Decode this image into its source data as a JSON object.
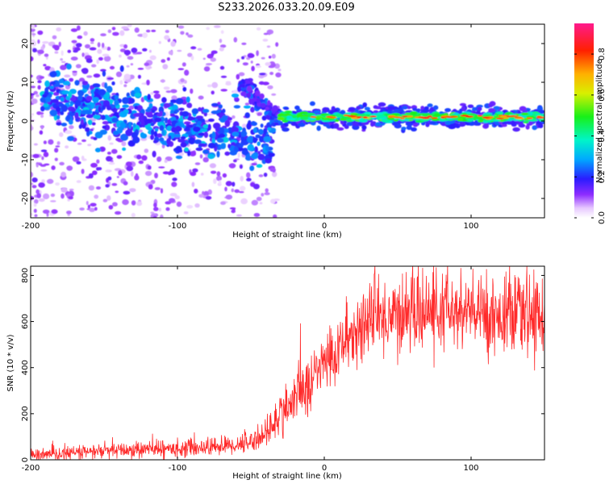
{
  "title": "S233.2026.033.20.09.E09",
  "chart_data": [
    {
      "type": "heatmap",
      "name": "spectrogram",
      "xlabel": "Height of straight line (km)",
      "ylabel": "Frequency (Hz)",
      "xlim": [
        -200,
        150
      ],
      "ylim": [
        -25,
        25
      ],
      "xticks": [
        -200,
        -100,
        0,
        100
      ],
      "xtick_labels": [
        "-200",
        "-100",
        "0",
        "100"
      ],
      "yticks": [
        -20,
        -10,
        0,
        10,
        20
      ],
      "ytick_labels": [
        "-20",
        "-10",
        "0",
        "10",
        "20"
      ],
      "colorbar": {
        "label": "Normalized spectral amplitude",
        "range": [
          0.0,
          0.95
        ],
        "ticks": [
          0.0,
          0.2,
          0.4,
          0.6,
          0.8
        ],
        "tick_labels": [
          "0.0",
          "0.2",
          "0.4",
          "0.6",
          "0.8"
        ]
      },
      "features": [
        {
          "kind": "scatter-noise",
          "x_range": [
            -200,
            -40
          ],
          "freq_range": [
            -25,
            25
          ],
          "amplitude": 0.05
        },
        {
          "kind": "diagonal-band",
          "from": [
            -190,
            6
          ],
          "to": [
            -35,
            -6
          ],
          "amplitude": 0.3
        },
        {
          "kind": "short-branch",
          "from": [
            -60,
            10
          ],
          "to": [
            -35,
            3
          ],
          "amplitude": 0.25
        },
        {
          "kind": "flat-band",
          "from": [
            -35,
            1
          ],
          "to": [
            150,
            1.5
          ],
          "amplitude": 0.6
        }
      ]
    },
    {
      "type": "line",
      "name": "snr",
      "xlabel": "Height of straight line (km)",
      "ylabel": "SNR (10 * v/v)",
      "xlim": [
        -200,
        150
      ],
      "ylim": [
        0,
        840
      ],
      "xticks": [
        -200,
        -100,
        0,
        100
      ],
      "xtick_labels": [
        "-200",
        "-100",
        "0",
        "100"
      ],
      "yticks": [
        0,
        200,
        400,
        600,
        800
      ],
      "ytick_labels": [
        "0",
        "200",
        "400",
        "600",
        "800"
      ],
      "color": "#ff2a2a",
      "x": [
        -200,
        -180,
        -160,
        -140,
        -120,
        -100,
        -80,
        -60,
        -50,
        -40,
        -35,
        -30,
        -25,
        -20,
        -15,
        -10,
        -5,
        0,
        5,
        10,
        15,
        20,
        25,
        30,
        40,
        50,
        60,
        70,
        80,
        90,
        100,
        110,
        120,
        130,
        140,
        150
      ],
      "y": [
        20,
        25,
        35,
        40,
        45,
        50,
        55,
        65,
        80,
        110,
        150,
        200,
        240,
        260,
        300,
        330,
        380,
        420,
        450,
        480,
        520,
        550,
        580,
        600,
        620,
        630,
        640,
        640,
        640,
        640,
        635,
        630,
        625,
        625,
        625,
        625
      ]
    }
  ]
}
